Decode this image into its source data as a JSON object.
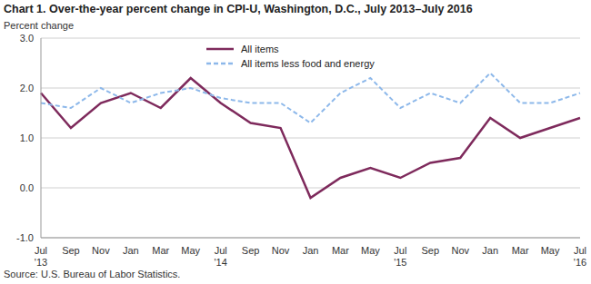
{
  "chart_data": {
    "type": "line",
    "title": "Chart 1. Over-the-year percent change in CPI-U, Washington, D.C., July 2013–July 2016",
    "ylabel": "Percent change",
    "source": "Source: U.S. Bureau of Labor Statistics.",
    "categories": [
      "Jul\n'13",
      "Sep",
      "Nov",
      "Jan",
      "Mar",
      "May",
      "Jul\n'14",
      "Sep",
      "Nov",
      "Jan",
      "Mar",
      "May",
      "Jul\n'15",
      "Sep",
      "Nov",
      "Jan",
      "Mar",
      "May",
      "Jul\n'16"
    ],
    "series": [
      {
        "name": "All items",
        "color": "#7e2a5c",
        "line_style": "solid",
        "values": [
          1.9,
          1.2,
          1.7,
          1.9,
          1.6,
          2.2,
          1.7,
          1.3,
          1.2,
          -0.2,
          0.2,
          0.4,
          0.2,
          0.5,
          0.6,
          1.4,
          1.0,
          1.2,
          1.4
        ]
      },
      {
        "name": "All items less food and energy",
        "color": "#8db8ea",
        "line_style": "dashed",
        "values": [
          1.7,
          1.6,
          2.0,
          1.7,
          1.9,
          2.0,
          1.8,
          1.7,
          1.7,
          1.3,
          1.9,
          2.2,
          1.6,
          1.9,
          1.7,
          2.3,
          1.7,
          1.7,
          1.9
        ]
      }
    ],
    "ylim": [
      -1,
      3
    ],
    "yticks": [
      {
        "value": -1,
        "label": "-1.0"
      },
      {
        "value": 0,
        "label": "0.0"
      },
      {
        "value": 1,
        "label": "1.0"
      },
      {
        "value": 2,
        "label": "2.0"
      },
      {
        "value": 3,
        "label": "3.0"
      }
    ],
    "grid": true,
    "legend": "top"
  }
}
